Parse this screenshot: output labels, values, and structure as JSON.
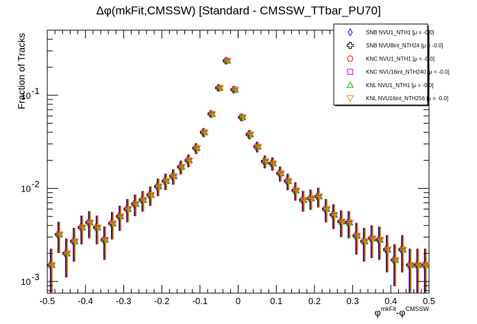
{
  "title": "Δφ(mkFit,CMSSW) [Standard - CMSSW_TTbar_PU70]",
  "chart_data": {
    "type": "scatter",
    "title": "Δφ(mkFit,CMSSW) [Standard - CMSSW_TTbar_PU70]",
    "ylabel": "Fraction of Tracks",
    "xlabel_main": "φ",
    "xlabel_sup1": "mkFit",
    "xlabel_mid": "-φ",
    "xlabel_sup2": "CMSSW",
    "xlim": [
      -0.5,
      0.5
    ],
    "ylim": [
      0.00075,
      0.5
    ],
    "yscale": "log",
    "x_ticks": [
      "-0.5",
      "-0.4",
      "-0.3",
      "-0.2",
      "-0.1",
      "0",
      "0.1",
      "0.2",
      "0.3",
      "0.4",
      "0.5"
    ],
    "y_ticks": [
      {
        "value": 0.001,
        "base": "10",
        "exp": "-3"
      },
      {
        "value": 0.01,
        "base": "10",
        "exp": "-2"
      },
      {
        "value": 0.1,
        "base": "10",
        "exp": "-1"
      }
    ],
    "legend_position": "top-right",
    "x": [
      -0.49,
      -0.47,
      -0.45,
      -0.43,
      -0.41,
      -0.39,
      -0.37,
      -0.35,
      -0.33,
      -0.31,
      -0.29,
      -0.27,
      -0.25,
      -0.23,
      -0.21,
      -0.19,
      -0.17,
      -0.15,
      -0.13,
      -0.11,
      -0.09,
      -0.07,
      -0.05,
      -0.03,
      -0.01,
      0.01,
      0.03,
      0.05,
      0.07,
      0.09,
      0.11,
      0.13,
      0.15,
      0.17,
      0.19,
      0.21,
      0.23,
      0.25,
      0.27,
      0.29,
      0.31,
      0.33,
      0.35,
      0.37,
      0.39,
      0.41,
      0.43,
      0.45,
      0.47,
      0.49
    ],
    "series": [
      {
        "name": "SNB NVU1_NTH1 [μ = -0.0]",
        "marker": "diamond",
        "color": "#0000ff",
        "values": [
          0.0015,
          0.0032,
          0.002,
          0.0027,
          0.0038,
          0.0043,
          0.0038,
          0.0028,
          0.0042,
          0.005,
          0.006,
          0.0068,
          0.0075,
          0.0085,
          0.0105,
          0.012,
          0.0135,
          0.017,
          0.02,
          0.027,
          0.04,
          0.063,
          0.12,
          0.235,
          0.115,
          0.058,
          0.038,
          0.028,
          0.0195,
          0.0185,
          0.0145,
          0.012,
          0.0095,
          0.0075,
          0.0078,
          0.0082,
          0.006,
          0.0052,
          0.0044,
          0.0043,
          0.0031,
          0.0027,
          0.0029,
          0.0028,
          0.0022,
          0.0017,
          0.0022,
          0.0015,
          0.0015,
          0.0015
        ]
      },
      {
        "name": "SNB NVU8int_NTH24 [μ = -0.0]",
        "marker": "cross",
        "color": "#000000",
        "values": [
          0.0015,
          0.0032,
          0.002,
          0.0027,
          0.0038,
          0.0043,
          0.0038,
          0.0028,
          0.0042,
          0.005,
          0.006,
          0.0068,
          0.0075,
          0.0085,
          0.0105,
          0.012,
          0.0135,
          0.017,
          0.02,
          0.027,
          0.04,
          0.063,
          0.12,
          0.235,
          0.115,
          0.058,
          0.038,
          0.028,
          0.0195,
          0.0185,
          0.0145,
          0.012,
          0.0095,
          0.0075,
          0.0078,
          0.0082,
          0.006,
          0.0052,
          0.0044,
          0.0043,
          0.0031,
          0.0027,
          0.0029,
          0.0028,
          0.0022,
          0.0017,
          0.0022,
          0.0015,
          0.0015,
          0.0015
        ]
      },
      {
        "name": "KNC NVU1_NTH1 [μ = -0.0]",
        "marker": "circle",
        "color": "#ff0000",
        "values": [
          0.0015,
          0.0032,
          0.002,
          0.0027,
          0.0038,
          0.0043,
          0.0038,
          0.0028,
          0.0042,
          0.005,
          0.006,
          0.0068,
          0.0075,
          0.0085,
          0.0105,
          0.012,
          0.0135,
          0.017,
          0.02,
          0.027,
          0.04,
          0.063,
          0.12,
          0.235,
          0.115,
          0.058,
          0.038,
          0.028,
          0.0195,
          0.0185,
          0.0145,
          0.012,
          0.0095,
          0.0075,
          0.0078,
          0.0082,
          0.006,
          0.0052,
          0.0044,
          0.0043,
          0.0031,
          0.0027,
          0.0029,
          0.0028,
          0.0022,
          0.0017,
          0.0022,
          0.0015,
          0.0015,
          0.0015
        ]
      },
      {
        "name": "KNC NVU16int_NTH240 [μ = -0.0]",
        "marker": "square",
        "color": "#cc00cc",
        "values": [
          0.0015,
          0.0032,
          0.002,
          0.0027,
          0.0038,
          0.0043,
          0.0038,
          0.0028,
          0.0042,
          0.005,
          0.006,
          0.0068,
          0.0075,
          0.0085,
          0.0105,
          0.012,
          0.0135,
          0.017,
          0.02,
          0.027,
          0.04,
          0.063,
          0.12,
          0.235,
          0.115,
          0.058,
          0.038,
          0.028,
          0.0195,
          0.0185,
          0.0145,
          0.012,
          0.0095,
          0.0075,
          0.0078,
          0.0082,
          0.006,
          0.0052,
          0.0044,
          0.0043,
          0.0031,
          0.0027,
          0.0029,
          0.0028,
          0.0022,
          0.0017,
          0.0022,
          0.0015,
          0.0015,
          0.0015
        ]
      },
      {
        "name": "KNL NVU1_NTH1 [μ = -0.0]",
        "marker": "triangle-up",
        "color": "#00bb00",
        "values": [
          0.0015,
          0.0032,
          0.002,
          0.0027,
          0.0038,
          0.0043,
          0.0038,
          0.0028,
          0.0042,
          0.005,
          0.006,
          0.0068,
          0.0075,
          0.0085,
          0.0105,
          0.012,
          0.0135,
          0.017,
          0.02,
          0.027,
          0.04,
          0.063,
          0.12,
          0.235,
          0.115,
          0.058,
          0.038,
          0.028,
          0.0195,
          0.0185,
          0.0145,
          0.012,
          0.0095,
          0.0075,
          0.0078,
          0.0082,
          0.006,
          0.0052,
          0.0044,
          0.0043,
          0.0031,
          0.0027,
          0.0029,
          0.0028,
          0.0022,
          0.0017,
          0.0022,
          0.0015,
          0.0015,
          0.0015
        ]
      },
      {
        "name": "KNL NVU16int_NTH256 [μ = -0.0]",
        "marker": "triangle-down",
        "color": "#ff8800",
        "values": [
          0.0015,
          0.0032,
          0.002,
          0.0027,
          0.0038,
          0.0043,
          0.0038,
          0.0028,
          0.0042,
          0.005,
          0.006,
          0.0068,
          0.0075,
          0.0085,
          0.0105,
          0.012,
          0.0135,
          0.017,
          0.02,
          0.027,
          0.04,
          0.063,
          0.12,
          0.235,
          0.115,
          0.058,
          0.038,
          0.028,
          0.0195,
          0.0185,
          0.0145,
          0.012,
          0.0095,
          0.0075,
          0.0078,
          0.0082,
          0.006,
          0.0052,
          0.0044,
          0.0043,
          0.0031,
          0.0027,
          0.0029,
          0.0028,
          0.0022,
          0.0017,
          0.0022,
          0.0015,
          0.0015,
          0.0015
        ]
      }
    ]
  }
}
